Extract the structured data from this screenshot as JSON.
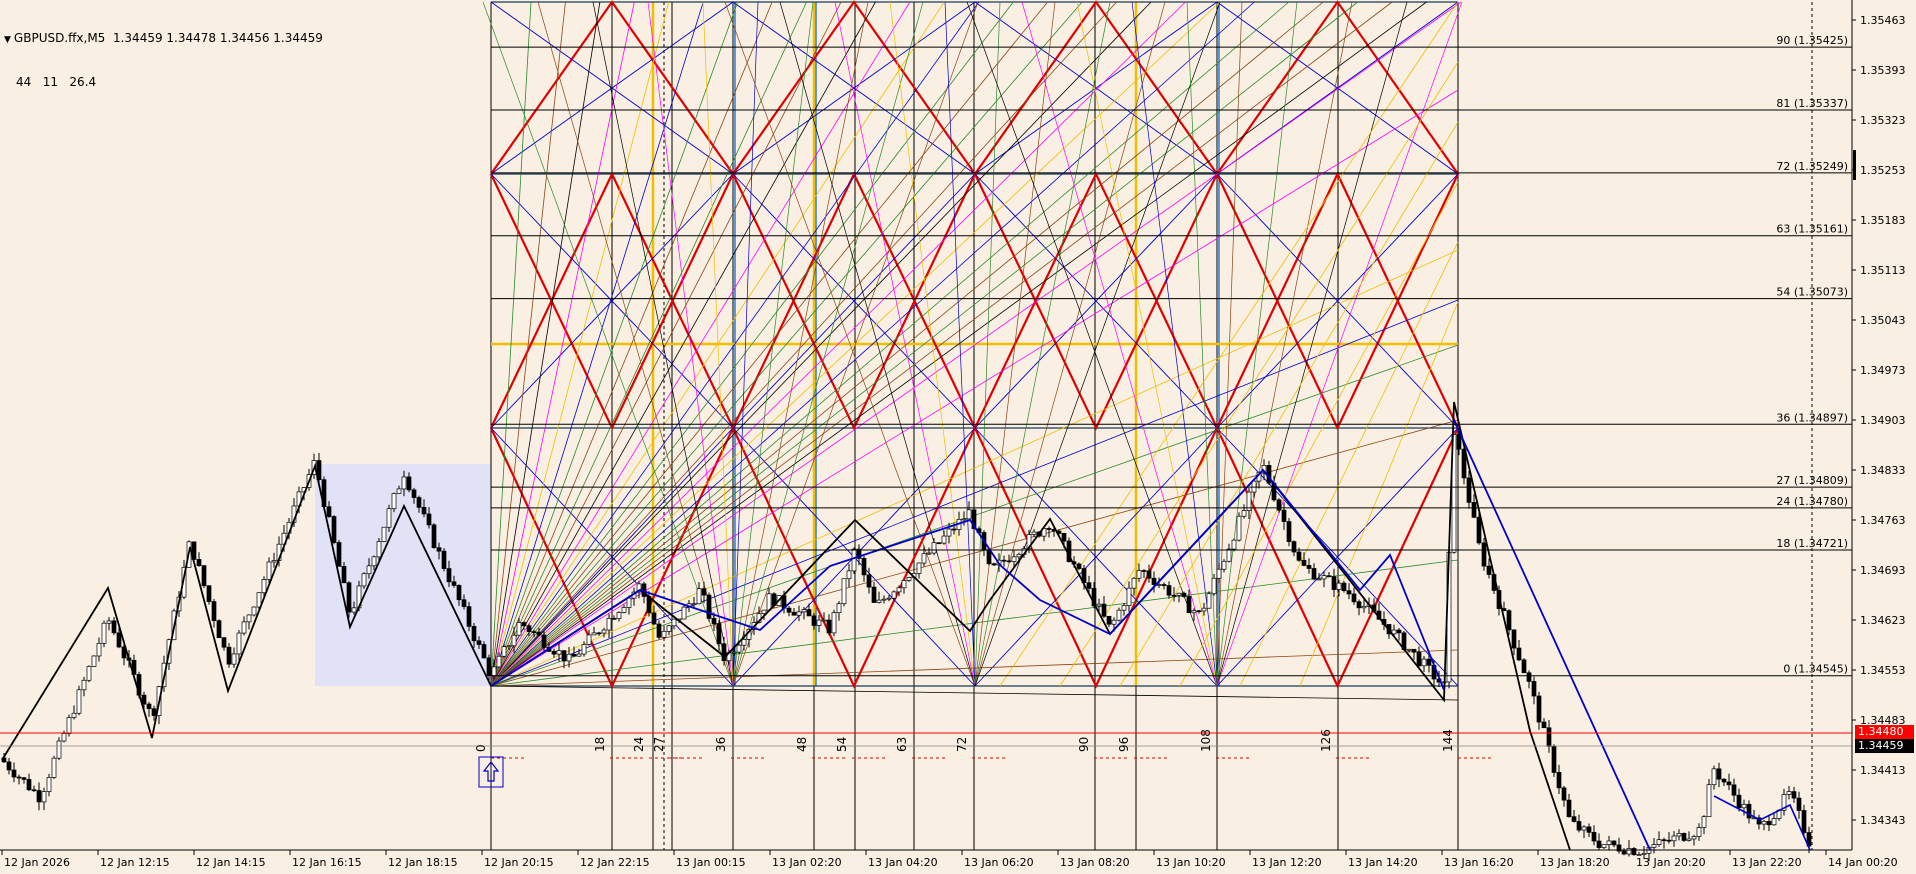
{
  "window": {
    "symbol": "GBPUSD.ffx,M5",
    "ohlc": "1.34459 1.34478 1.34456 1.34459",
    "indicator_values": "44   11   26.4"
  },
  "colors": {
    "background": "#f9efe3",
    "bid_line": "#ff0000",
    "ask_box": "#000000",
    "bid_box": "#ff0000",
    "gann_red": "#e00000",
    "gann_blue": "#0000cc",
    "gann_gold": "#f0c000",
    "selection_box": "#e2e2f6"
  },
  "price_axis": {
    "ticks": [
      "1.35463",
      "1.35393",
      "1.35323",
      "1.35253",
      "1.35183",
      "1.35113",
      "1.35043",
      "1.34973",
      "1.34903",
      "1.34833",
      "1.34763",
      "1.34693",
      "1.34623",
      "1.34553",
      "1.34483",
      "1.34413",
      "1.34343"
    ],
    "bid_label": "1.34480",
    "last_label": "1.34459"
  },
  "time_axis": {
    "labels": [
      "12 Jan 2026",
      "12 Jan 12:15",
      "12 Jan 14:15",
      "12 Jan 16:15",
      "12 Jan 18:15",
      "12 Jan 20:15",
      "12 Jan 22:15",
      "13 Jan 00:15",
      "13 Jan 02:20",
      "13 Jan 04:20",
      "13 Jan 06:20",
      "13 Jan 08:20",
      "13 Jan 10:20",
      "13 Jan 12:20",
      "13 Jan 14:20",
      "13 Jan 16:20",
      "13 Jan 18:20",
      "13 Jan 20:20",
      "13 Jan 22:20",
      "14 Jan 00:20"
    ]
  },
  "gann_levels": [
    {
      "label": "90 (1.35425)",
      "price": 1.35425
    },
    {
      "label": "81 (1.35337)",
      "price": 1.35337
    },
    {
      "label": "72 (1.35249)",
      "price": 1.35249
    },
    {
      "label": "63 (1.35161)",
      "price": 1.35161
    },
    {
      "label": "54 (1.35073)",
      "price": 1.35073
    },
    {
      "label": "36 (1.34897)",
      "price": 1.34897
    },
    {
      "label": "27 (1.34809)",
      "price": 1.34809
    },
    {
      "label": "24 (1.34780)",
      "price": 1.3478
    },
    {
      "label": "18 (1.34721)",
      "price": 1.34721
    },
    {
      "label": "0 (1.34545)",
      "price": 1.34545
    }
  ],
  "time_counts": [
    "0",
    "18",
    "24",
    "27",
    "36",
    "48",
    "54",
    "63",
    "72",
    "90",
    "96",
    "108",
    "126",
    "144"
  ],
  "arrow_icon": "up-arrow-icon"
}
